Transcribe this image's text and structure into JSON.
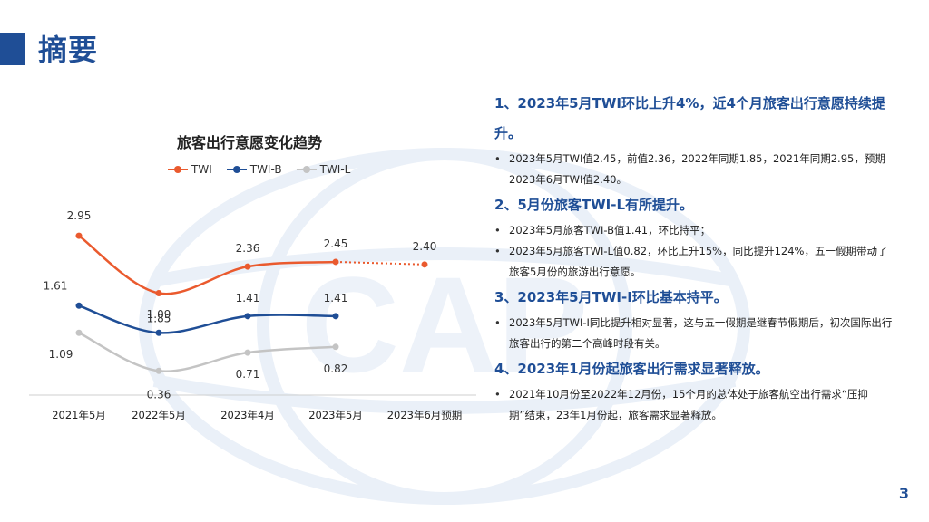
{
  "page": {
    "title": "摘要",
    "page_number": "3"
  },
  "colors": {
    "accent": "#1f4e96",
    "twi": "#ea5a2e",
    "twi_b": "#1f4e96",
    "twi_l": "#c4c4c4"
  },
  "watermark": {
    "text": "CAP"
  },
  "chart_data": {
    "type": "line",
    "title": "旅客出行意愿变化趋势",
    "categories": [
      "2021年5月",
      "2022年5月",
      "2023年4月",
      "2023年5月",
      "2023年6月预期"
    ],
    "ylim": [
      0,
      3.3
    ],
    "grid": false,
    "legend_position": "top",
    "series": [
      {
        "name": "TWI",
        "color": "#ea5a2e",
        "values": [
          2.95,
          1.85,
          2.36,
          2.45,
          2.4
        ],
        "labels": [
          "2.95",
          "1.85",
          "2.36",
          "2.45",
          "2.40"
        ],
        "forecast_from_index": 3
      },
      {
        "name": "TWI-B",
        "color": "#1f4e96",
        "values": [
          1.61,
          1.09,
          1.41,
          1.41,
          null
        ],
        "labels": [
          "1.61",
          "1.09",
          "1.41",
          "1.41",
          ""
        ]
      },
      {
        "name": "TWI-L",
        "color": "#c4c4c4",
        "values": [
          1.09,
          0.36,
          0.71,
          0.82,
          null
        ],
        "labels": [
          "1.09",
          "0.36",
          "0.71",
          "0.82",
          ""
        ]
      }
    ]
  },
  "summary": {
    "sections": [
      {
        "heading": "1、2023年5月TWI环比上升4%，近4个月旅客出行意愿持续提升。",
        "bullets": [
          "2023年5月TWI值2.45，前值2.36，2022年同期1.85，2021年同期2.95，预期2023年6月TWI值2.40。"
        ]
      },
      {
        "heading": "2、5月份旅客TWI-L有所提升。",
        "bullets": [
          "2023年5月旅客TWI-B值1.41，环比持平；",
          "2023年5月旅客TWI-L值0.82，环比上升15%，同比提升124%，五一假期带动了旅客5月份的旅游出行意愿。"
        ]
      },
      {
        "heading": "3、2023年5月TWI-I环比基本持平。",
        "bullets": [
          "2023年5月TWI-I同比提升相对显著，这与五一假期是继春节假期后，初次国际出行旅客出行的第二个高峰时段有关。"
        ]
      },
      {
        "heading": "4、2023年1月份起旅客出行需求显著释放。",
        "bullets": [
          "2021年10月份至2022年12月份，15个月的总体处于旅客航空出行需求“压抑期”结束，23年1月份起，旅客需求显著释放。"
        ]
      }
    ]
  }
}
